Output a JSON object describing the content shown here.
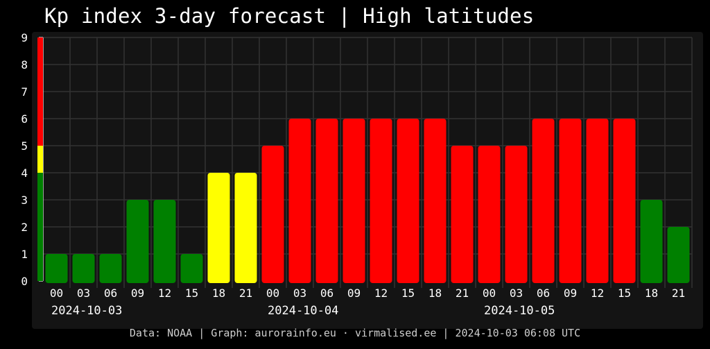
{
  "title": "Kp index 3-day forecast | High latitudes",
  "footer": "Data: NOAA | Graph: aurorainfo.eu · virmalised.ee | 2024-10-03 06:08 UTC",
  "chart_data": {
    "type": "bar",
    "title": "Kp index 3-day forecast | High latitudes",
    "xlabel": "",
    "ylabel": "",
    "ylim": [
      0,
      9
    ],
    "y_ticks": [
      "0",
      "1",
      "2",
      "3",
      "4",
      "5",
      "6",
      "7",
      "8",
      "9"
    ],
    "grid": true,
    "legend": "none",
    "categories": [
      "00",
      "03",
      "06",
      "09",
      "12",
      "15",
      "18",
      "21",
      "00",
      "03",
      "06",
      "09",
      "12",
      "15",
      "18",
      "21",
      "00",
      "03",
      "06",
      "09",
      "12",
      "15",
      "18",
      "21"
    ],
    "dates": [
      "2024-10-03",
      "2024-10-04",
      "2024-10-05"
    ],
    "values": [
      1,
      1,
      1,
      3,
      3,
      1,
      4,
      4,
      5,
      6,
      6,
      6,
      6,
      6,
      6,
      5,
      5,
      5,
      6,
      6,
      6,
      6,
      3,
      2
    ],
    "colors": {
      "low": "#008000",
      "moderate": "#ffff00",
      "high": "#ff0000",
      "grid": "#333333",
      "axis": "#cccccc",
      "text": "#ffffff"
    },
    "thresholds": {
      "moderate_from": 4,
      "high_from": 5
    },
    "scale_bar": [
      {
        "from": 0,
        "to": 4,
        "color": "#008000"
      },
      {
        "from": 4,
        "to": 5,
        "color": "#ffff00"
      },
      {
        "from": 5,
        "to": 9,
        "color": "#ff0000"
      }
    ]
  }
}
